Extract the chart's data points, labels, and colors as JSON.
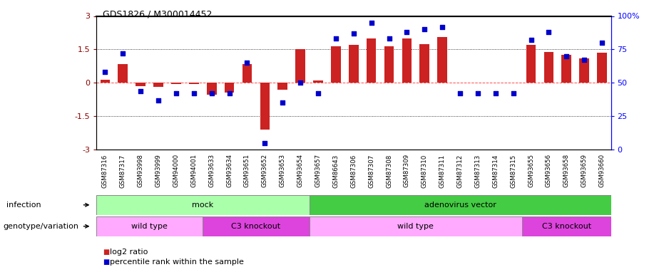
{
  "title": "GDS1826 / M300014452",
  "samples": [
    "GSM87316",
    "GSM87317",
    "GSM93998",
    "GSM93999",
    "GSM94000",
    "GSM94001",
    "GSM93633",
    "GSM93634",
    "GSM93651",
    "GSM93652",
    "GSM93653",
    "GSM93654",
    "GSM93657",
    "GSM86643",
    "GSM87306",
    "GSM87307",
    "GSM87308",
    "GSM87309",
    "GSM87310",
    "GSM87311",
    "GSM87312",
    "GSM87313",
    "GSM87314",
    "GSM87315",
    "GSM93655",
    "GSM93656",
    "GSM93658",
    "GSM93659",
    "GSM93660"
  ],
  "log2_ratio": [
    0.15,
    0.85,
    -0.15,
    -0.18,
    -0.05,
    -0.05,
    -0.55,
    -0.45,
    0.85,
    -2.1,
    -0.3,
    1.5,
    0.1,
    1.65,
    1.7,
    2.0,
    1.65,
    2.0,
    1.75,
    2.05,
    0.0,
    0.0,
    0.0,
    0.0,
    1.7,
    1.4,
    1.25,
    1.1,
    1.35
  ],
  "percentile_rank": [
    58,
    72,
    44,
    37,
    42,
    42,
    42,
    42,
    65,
    5,
    35,
    50,
    42,
    83,
    87,
    95,
    83,
    88,
    90,
    92,
    42,
    42,
    42,
    42,
    82,
    88,
    70,
    67,
    80
  ],
  "ylim": [
    -3,
    3
  ],
  "y2lim": [
    0,
    100
  ],
  "yticks": [
    -3,
    -1.5,
    0,
    1.5,
    3
  ],
  "y2ticks": [
    0,
    25,
    50,
    75,
    100
  ],
  "bar_color": "#cc2222",
  "dot_color": "#0000cc",
  "infection_groups": [
    {
      "label": "mock",
      "start": 0,
      "end": 11,
      "color": "#aaffaa"
    },
    {
      "label": "adenovirus vector",
      "start": 12,
      "end": 28,
      "color": "#44cc44"
    }
  ],
  "genotype_groups": [
    {
      "label": "wild type",
      "start": 0,
      "end": 5,
      "color": "#ffaaff"
    },
    {
      "label": "C3 knockout",
      "start": 6,
      "end": 11,
      "color": "#dd44dd"
    },
    {
      "label": "wild type",
      "start": 12,
      "end": 23,
      "color": "#ffaaff"
    },
    {
      "label": "C3 knockout",
      "start": 24,
      "end": 28,
      "color": "#dd44dd"
    }
  ],
  "infection_label": "infection",
  "genotype_label": "genotype/variation",
  "legend_bar_label": "log2 ratio",
  "legend_dot_label": "percentile rank within the sample",
  "background_color": "#ffffff"
}
